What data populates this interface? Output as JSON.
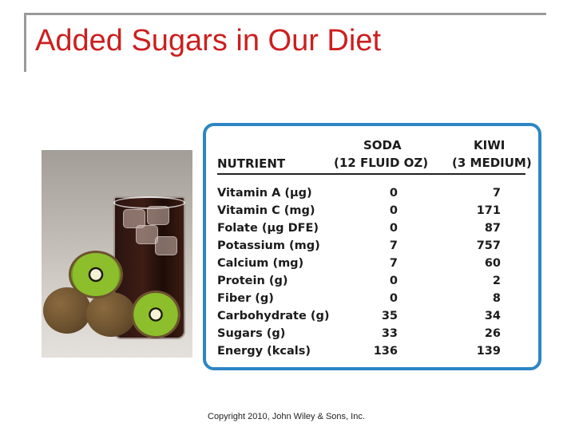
{
  "slide": {
    "title": "Added Sugars in Our Diet",
    "copyright": "Copyright 2010, John Wiley & Sons, Inc."
  },
  "table": {
    "header": {
      "nutrient": "NUTRIENT",
      "soda": "SODA",
      "soda_unit": "(12 FLUID OZ)",
      "kiwi": "KIWI",
      "kiwi_unit": "(3 MEDIUM)"
    },
    "rows": [
      {
        "nutrient": "Vitamin A (µg)",
        "soda": "0",
        "kiwi": "7"
      },
      {
        "nutrient": "Vitamin C (mg)",
        "soda": "0",
        "kiwi": "171"
      },
      {
        "nutrient": "Folate (µg DFE)",
        "soda": "0",
        "kiwi": "87"
      },
      {
        "nutrient": "Potassium (mg)",
        "soda": "7",
        "kiwi": "757"
      },
      {
        "nutrient": "Calcium (mg)",
        "soda": "7",
        "kiwi": "60"
      },
      {
        "nutrient": "Protein (g)",
        "soda": "0",
        "kiwi": "2"
      },
      {
        "nutrient": "Fiber (g)",
        "soda": "0",
        "kiwi": "8"
      },
      {
        "nutrient": "Carbohydrate (g)",
        "soda": "35",
        "kiwi": "34"
      },
      {
        "nutrient": "Sugars (g)",
        "soda": "33",
        "kiwi": "26"
      },
      {
        "nutrient": "Energy (kcals)",
        "soda": "136",
        "kiwi": "139"
      }
    ]
  },
  "colors": {
    "title": "#cc1f1f",
    "card_border": "#2d86c4"
  }
}
